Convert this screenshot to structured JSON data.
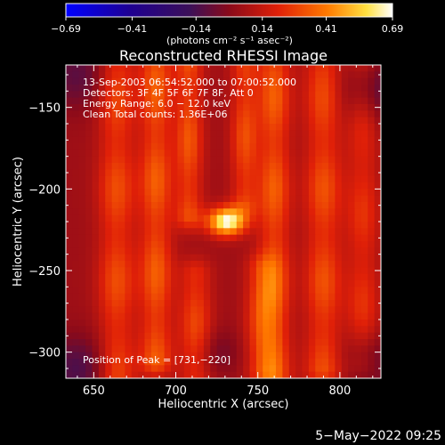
{
  "chart_data": {
    "type": "heatmap",
    "title": "Reconstructed RHESSI Image",
    "xlabel": "Heliocentric X (arcsec)",
    "ylabel": "Heliocentric Y (arcsec)",
    "xlim": [
      633,
      825
    ],
    "ylim": [
      -316,
      -124
    ],
    "x_ticks": [
      650,
      700,
      750,
      800
    ],
    "x_tick_labels": [
      "650",
      "700",
      "750",
      "800"
    ],
    "y_ticks": [
      -150,
      -200,
      -250,
      -300
    ],
    "y_tick_labels": [
      "−150",
      "−200",
      "−250",
      "−300"
    ],
    "colorbar": {
      "colormap": "black-purple-red-yellow-white",
      "range": [
        -0.69,
        0.69
      ],
      "tick_values": [
        -0.69,
        -0.41,
        -0.14,
        0.14,
        0.41,
        0.69
      ],
      "tick_labels": [
        "−0.69",
        "−0.41",
        "−0.14",
        "0.14",
        "0.41",
        "0.69"
      ],
      "unit_label": "(photons cm⁻² s⁻¹ asec⁻²)"
    },
    "annotations": [
      "13-Sep-2003 06:54:52.000 to 07:00:52.000",
      "Detectors: 3F 4F 5F 6F 7F 8F, Att 0",
      "Energy Range: 6.0 − 12.0 keV",
      "Clean    Total counts: 1.36E+06"
    ],
    "peak_label": "Position of Peak = [731,−220]",
    "peak": {
      "x": 731,
      "y": -220,
      "value": 0.69
    },
    "background_level": 0.05,
    "bands": [
      {
        "x": 664,
        "y_center": -200,
        "y_halfwidth": 118,
        "amplitude": 0.26,
        "x_sigma": 8
      },
      {
        "x": 688,
        "y_center": -195,
        "y_halfwidth": 110,
        "amplitude": 0.3,
        "x_sigma": 7
      },
      {
        "x": 708,
        "y_center": -170,
        "y_halfwidth": 45,
        "amplitude": 0.28,
        "x_sigma": 6
      },
      {
        "x": 712,
        "y_center": -285,
        "y_halfwidth": 32,
        "amplitude": 0.25,
        "x_sigma": 7
      },
      {
        "x": 742,
        "y_center": -168,
        "y_halfwidth": 40,
        "amplitude": 0.26,
        "x_sigma": 6
      },
      {
        "x": 752,
        "y_center": -280,
        "y_halfwidth": 30,
        "amplitude": 0.22,
        "x_sigma": 7
      },
      {
        "x": 760,
        "y_center": -200,
        "y_halfwidth": 115,
        "amplitude": 0.3,
        "x_sigma": 7
      },
      {
        "x": 790,
        "y_center": -200,
        "y_halfwidth": 110,
        "amplitude": 0.27,
        "x_sigma": 8
      },
      {
        "x": 814,
        "y_center": -215,
        "y_halfwidth": 90,
        "amplitude": 0.2,
        "x_sigma": 7
      }
    ],
    "source": {
      "x": 731,
      "y": -220,
      "amplitude": 0.64,
      "sigma_x": 8,
      "sigma_y": 6
    },
    "dark_regions": [
      {
        "x": 640,
        "y": -130,
        "amplitude": -0.15,
        "sigma": 15
      },
      {
        "x": 820,
        "y": -140,
        "amplitude": -0.18,
        "sigma": 15
      },
      {
        "x": 640,
        "y": -310,
        "amplitude": -0.18,
        "sigma": 14
      },
      {
        "x": 725,
        "y": -300,
        "amplitude": -0.1,
        "sigma": 10
      },
      {
        "x": 818,
        "y": -305,
        "amplitude": -0.15,
        "sigma": 12
      }
    ]
  },
  "footer": {
    "date_stamp": "5−May−2022 09:25"
  }
}
